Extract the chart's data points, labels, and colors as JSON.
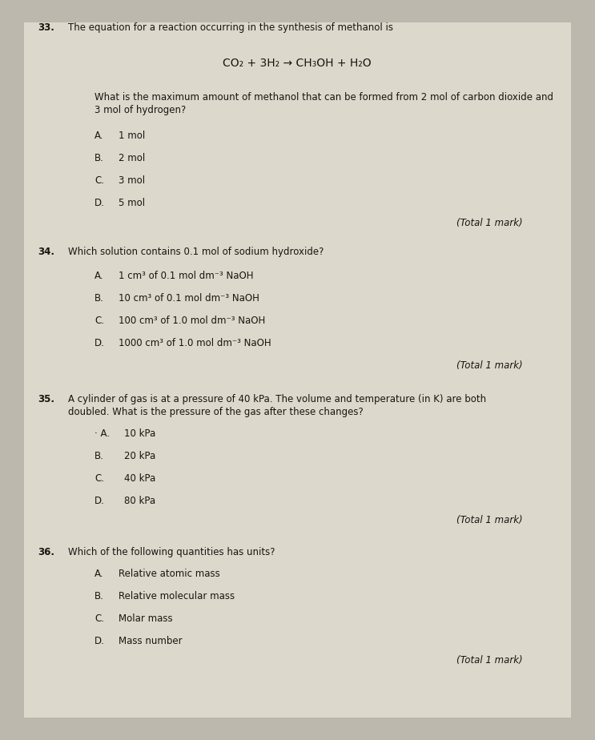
{
  "bg_color": "#bdb8ad",
  "paper_color": "#ddd8cc",
  "text_color": "#1a1410",
  "italic_color": "#2a2010",
  "q33_num": "33.",
  "q33_title": "The equation for a reaction occurring in the synthesis of methanol is",
  "q33_equation": "CO₂ + 3H₂ → CH₃OH + H₂O",
  "q33_body1": "What is the maximum amount of methanol that can be formed from 2 mol of carbon dioxide and",
  "q33_body2": "3 mol of hydrogen?",
  "q33_opts": [
    "1 mol",
    "2 mol",
    "3 mol",
    "5 mol"
  ],
  "q33_total": "(Total 1 mark)",
  "q34_num": "34.",
  "q34_title": "Which solution contains 0.1 mol of sodium hydroxide?",
  "q34_opts": [
    "1 cm³ of 0.1 mol dm⁻³ NaOH",
    "10 cm³ of 0.1 mol dm⁻³ NaOH",
    "100 cm³ of 1.0 mol dm⁻³ NaOH",
    "1000 cm³ of 1.0 mol dm⁻³ NaOH"
  ],
  "q34_total": "(Total 1 mark)",
  "q35_num": "35.",
  "q35_title1": "A cylinder of gas is at a pressure of 40 kPa. The volume and temperature (in K) are both",
  "q35_title2": "doubled. What is the pressure of the gas after these changes?",
  "q35_opts": [
    "10 kPa",
    "20 kPa",
    "40 kPa",
    "80 kPa"
  ],
  "q35_total": "(Total 1 mark)",
  "q36_num": "36.",
  "q36_title": "Which of the following quantities has units?",
  "q36_opts": [
    "Relative atomic mass",
    "Relative molecular mass",
    "Molar mass",
    "Mass number"
  ],
  "q36_total": "(Total 1 mark)",
  "labels": [
    "A.",
    "B.",
    "C.",
    "D."
  ]
}
